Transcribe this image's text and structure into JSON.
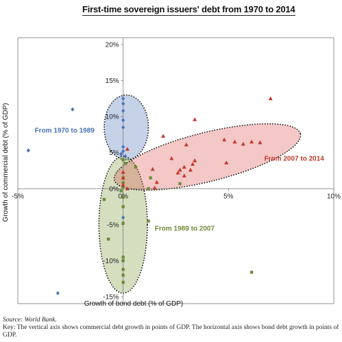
{
  "chart_data": {
    "type": "scatter",
    "title": "First-time sovereign issuers' debt from 1970 to 2014",
    "xlabel": "Growth of bond debt (% of GDP)",
    "ylabel": "Growth of commercial debt (% of GDP)",
    "xlim": [
      -5,
      10
    ],
    "ylim": [
      -15,
      20
    ],
    "x_ticks": [
      "-5%",
      "0%",
      "5%",
      "10%"
    ],
    "y_ticks": [
      "20%",
      "15%",
      "10%",
      "5%",
      "0%",
      "-5%",
      "-10%",
      "-15%"
    ],
    "grid": false,
    "colors": {
      "1970_1989": "#4a72b8",
      "1989_2007": "#6f8b3a",
      "2007_2014": "#c0392b"
    },
    "series": [
      {
        "name": "From 1970 to 1989",
        "marker": "diamond",
        "points": [
          [
            -4.5,
            5.3
          ],
          [
            -2.4,
            11.0
          ],
          [
            -3.1,
            -14.5
          ],
          [
            0.0,
            12.5
          ],
          [
            0.0,
            11.8
          ],
          [
            0.0,
            10.8
          ],
          [
            0.0,
            9.5
          ],
          [
            0.0,
            8.5
          ],
          [
            0.0,
            5.8
          ],
          [
            0.0,
            5.2
          ],
          [
            -0.1,
            4.8
          ],
          [
            0.1,
            4.5
          ],
          [
            0.0,
            -4.0
          ]
        ]
      },
      {
        "name": "From 1989 to 2007",
        "marker": "square",
        "points": [
          [
            0.0,
            4.0
          ],
          [
            0.1,
            3.5
          ],
          [
            0.6,
            3.0
          ],
          [
            0.0,
            1.5
          ],
          [
            0.0,
            0.8
          ],
          [
            0.0,
            0.2
          ],
          [
            -0.1,
            -0.3
          ],
          [
            0.0,
            -1.2
          ],
          [
            1.3,
            1.5
          ],
          [
            2.7,
            0.7
          ],
          [
            1.2,
            0.0
          ],
          [
            0.0,
            -2.5
          ],
          [
            0.0,
            -4.8
          ],
          [
            1.2,
            -4.5
          ],
          [
            -0.7,
            -7.0
          ],
          [
            0.0,
            -9.5
          ],
          [
            0.0,
            -10.0
          ],
          [
            0.0,
            -11.2
          ],
          [
            0.0,
            -12.0
          ],
          [
            0.0,
            -13.0
          ],
          [
            6.1,
            -11.6
          ],
          [
            -0.9,
            -1.5
          ]
        ]
      },
      {
        "name": "From 2007 to 2014",
        "marker": "triangle",
        "points": [
          [
            7.0,
            12.5
          ],
          [
            4.8,
            6.8
          ],
          [
            5.3,
            6.5
          ],
          [
            5.7,
            6.2
          ],
          [
            6.1,
            6.5
          ],
          [
            6.5,
            6.4
          ],
          [
            3.4,
            9.6
          ],
          [
            1.9,
            7.3
          ],
          [
            3.0,
            6.1
          ],
          [
            2.3,
            4.2
          ],
          [
            2.9,
            3.0
          ],
          [
            3.3,
            3.4
          ],
          [
            3.2,
            2.6
          ],
          [
            3.4,
            3.9
          ],
          [
            4.9,
            3.6
          ],
          [
            2.7,
            2.6
          ],
          [
            2.6,
            2.2
          ],
          [
            2.9,
            1.8
          ],
          [
            1.4,
            2.7
          ],
          [
            1.6,
            0.9
          ],
          [
            1.5,
            0.1
          ],
          [
            0.0,
            1.5
          ],
          [
            0.0,
            0.5
          ],
          [
            0.2,
            0.0
          ],
          [
            0.0,
            2.3
          ],
          [
            0.2,
            5.5
          ]
        ]
      }
    ],
    "ellipses": [
      {
        "label": "From 1970 to 1989",
        "cx": 0.15,
        "cy": 8.5,
        "rx": 1.05,
        "ry": 4.5,
        "angle": 0,
        "fill": "#4a72b8"
      },
      {
        "label": "From 1989 to 2007",
        "cx": 0.0,
        "cy": -5.0,
        "rx": 1.15,
        "ry": 9.5,
        "angle": 0,
        "fill": "#7d9a3a"
      },
      {
        "label": "From 2007 to 2014",
        "cx": 4.0,
        "cy": 4.4,
        "rx": 4.55,
        "ry": 3.4,
        "angle": -14,
        "fill": "#d9534f"
      }
    ],
    "annotations": [
      {
        "text": "From 1970 to 1989",
        "x": -4.2,
        "y": 7.8,
        "color": "#4a72b8",
        "anchor": "start"
      },
      {
        "text": "From 1989 to 2007",
        "x": 1.5,
        "y": -5.8,
        "color": "#6f8b3a",
        "anchor": "start"
      },
      {
        "text": "From 2007 to 2014",
        "x": 6.7,
        "y": 3.9,
        "color": "#c0392b",
        "anchor": "start"
      }
    ]
  },
  "footnote": {
    "source": "Source: World Bank.",
    "key": "Key: The vertical axis shows commercial debt growth in points of GDP. The horizontal axis shows bond debt growth in points of GDP."
  }
}
